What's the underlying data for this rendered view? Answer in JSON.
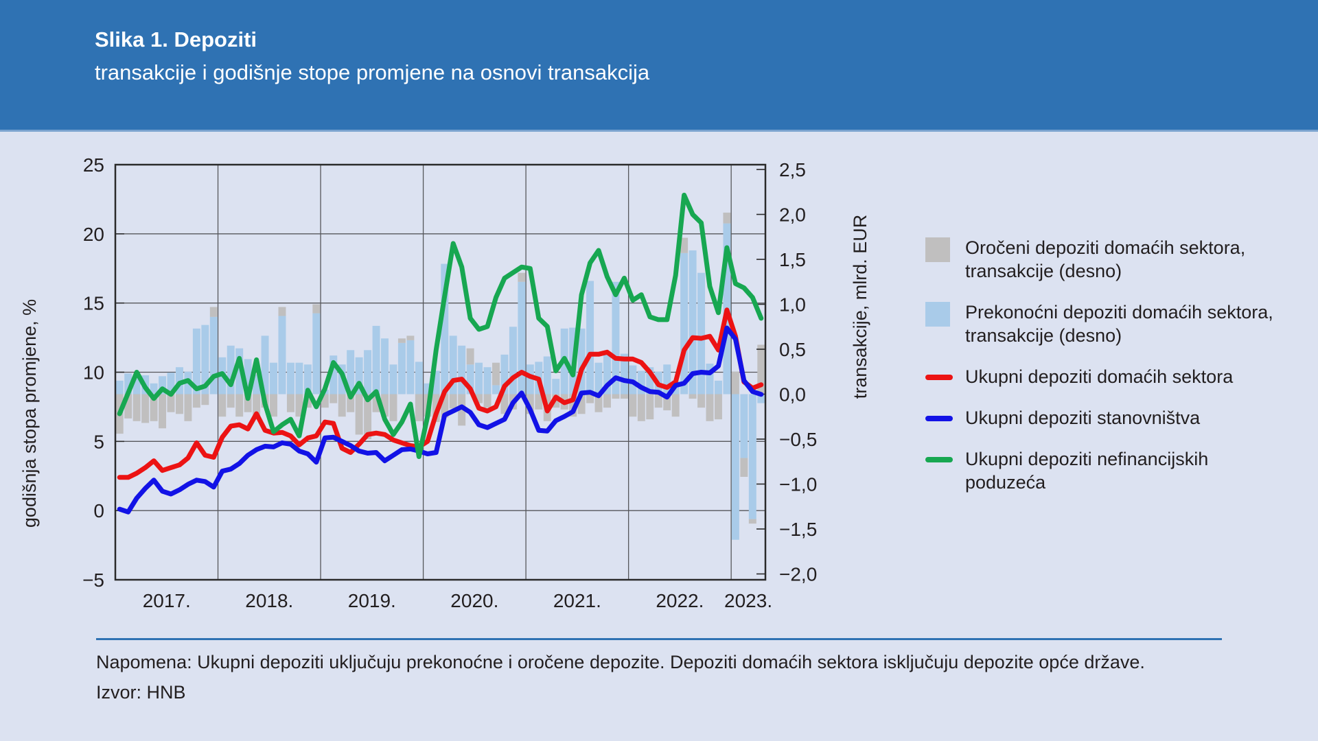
{
  "header": {
    "title": "Slika 1. Depoziti",
    "subtitle": "transakcije i godišnje stope promjene na osnovi transakcija"
  },
  "chart_data": {
    "type": "bar",
    "subtype": "combo-stacked-bars-with-lines",
    "x_monthly_start": "2017-01",
    "x_monthly_end": "2023-04",
    "n_months": 76,
    "x_tick_labels": [
      "2017.",
      "2018.",
      "2019.",
      "2020.",
      "2021.",
      "2022.",
      "2023."
    ],
    "left_axis": {
      "label": "godišnja stopa promjene, %",
      "min": -5,
      "max": 25,
      "tick_values": [
        25,
        20,
        15,
        10,
        5,
        0,
        -5
      ],
      "tick_labels": [
        "25",
        "20",
        "15",
        "10",
        "5",
        "0",
        "−5"
      ]
    },
    "right_axis": {
      "label": "transakcije, mlrd. EUR",
      "min": -2.0,
      "max": 2.5,
      "tick_values": [
        2.5,
        2.0,
        1.5,
        1.0,
        0.5,
        0.0,
        -0.5,
        -1.0,
        -1.5,
        -2.0
      ],
      "tick_labels": [
        "2,5",
        "2,0",
        "1,5",
        "1,0",
        "0,5",
        "0,0",
        "−0,5",
        "−1,0",
        "−1,5",
        "−2,0"
      ]
    },
    "grid": true,
    "legend_position": "right",
    "series": [
      {
        "name": "Prekonoćni depoziti domaćih sektora, transakcije (desno)",
        "type": "bar",
        "axis": "right",
        "color": "#a9cbe9",
        "values": [
          0.15,
          0.23,
          0.2,
          0.21,
          0.12,
          0.2,
          0.24,
          0.3,
          0.25,
          0.73,
          0.77,
          0.86,
          0.41,
          0.54,
          0.51,
          0.39,
          0.22,
          0.65,
          0.35,
          0.87,
          0.35,
          0.35,
          0.33,
          0.9,
          0.05,
          0.43,
          0.33,
          0.49,
          0.41,
          0.49,
          0.76,
          0.62,
          0.33,
          0.57,
          0.6,
          0.36,
          0.12,
          0.26,
          1.45,
          0.65,
          0.54,
          0.33,
          0.35,
          0.3,
          0.1,
          0.44,
          0.75,
          1.25,
          0.33,
          0.36,
          0.42,
          0.17,
          0.73,
          0.74,
          0.73,
          1.26,
          0.35,
          0.45,
          1.25,
          0.45,
          0.32,
          0.26,
          0.3,
          0.25,
          0.33,
          0.15,
          1.57,
          1.6,
          1.35,
          0.34,
          0.15,
          1.9,
          -1.62,
          -0.71,
          -1.39,
          -0.1
        ]
      },
      {
        "name": "Oročeni depoziti domaćih sektora, transakcije (desno)",
        "type": "bar",
        "axis": "right",
        "color": "#c0bfbf",
        "values": [
          -0.44,
          -0.27,
          -0.3,
          -0.32,
          -0.3,
          -0.38,
          -0.2,
          -0.22,
          -0.3,
          -0.15,
          -0.12,
          0.11,
          -0.25,
          -0.15,
          -0.25,
          -0.2,
          -0.28,
          -0.15,
          -0.25,
          0.1,
          -0.2,
          -0.25,
          -0.15,
          0.1,
          -0.15,
          -0.1,
          -0.25,
          -0.2,
          -0.45,
          -0.5,
          -0.2,
          -0.25,
          -0.3,
          0.05,
          0.05,
          -0.3,
          -0.25,
          -0.31,
          -0.26,
          -0.16,
          -0.35,
          0.18,
          -0.1,
          -0.15,
          0.25,
          -0.22,
          -0.17,
          0.1,
          -0.22,
          -0.17,
          -0.3,
          -0.15,
          -0.17,
          -0.25,
          -0.22,
          -0.1,
          -0.2,
          -0.15,
          -0.05,
          -0.05,
          -0.25,
          -0.3,
          -0.28,
          -0.15,
          -0.18,
          -0.25,
          0.17,
          -0.05,
          -0.15,
          -0.3,
          -0.28,
          0.12,
          0.25,
          -0.21,
          -0.05,
          0.55
        ]
      },
      {
        "name": "Ukupni depoziti domaćih sektora",
        "type": "line",
        "axis": "left",
        "color": "#ec1313",
        "values": [
          2.4,
          2.4,
          2.7,
          3.1,
          3.6,
          2.9,
          3.1,
          3.3,
          3.8,
          4.9,
          4.0,
          3.85,
          5.3,
          6.1,
          6.2,
          5.9,
          7.0,
          5.8,
          5.6,
          5.65,
          5.4,
          4.75,
          5.25,
          5.4,
          6.4,
          6.3,
          4.5,
          4.2,
          4.8,
          5.5,
          5.6,
          5.5,
          5.1,
          4.9,
          4.7,
          4.6,
          5.0,
          7.0,
          8.6,
          9.4,
          9.5,
          8.8,
          7.4,
          7.2,
          7.5,
          9.0,
          9.6,
          10.0,
          9.7,
          9.5,
          7.2,
          8.2,
          7.8,
          8.0,
          10.2,
          11.3,
          11.3,
          11.45,
          11.0,
          10.95,
          10.95,
          10.7,
          10.0,
          9.1,
          8.9,
          9.3,
          11.6,
          12.5,
          12.45,
          12.6,
          11.6,
          14.5,
          12.6,
          9.3,
          8.85,
          9.1
        ]
      },
      {
        "name": "Ukupni depoziti stanovništva",
        "type": "line",
        "axis": "left",
        "color": "#1212e6",
        "values": [
          0.1,
          -0.1,
          0.9,
          1.6,
          2.2,
          1.4,
          1.2,
          1.5,
          1.9,
          2.2,
          2.1,
          1.7,
          2.85,
          3.0,
          3.4,
          4.0,
          4.4,
          4.65,
          4.6,
          4.9,
          4.8,
          4.3,
          4.1,
          3.5,
          5.25,
          5.3,
          5.0,
          4.7,
          4.3,
          4.15,
          4.2,
          3.6,
          4.0,
          4.4,
          4.45,
          4.3,
          4.1,
          4.2,
          6.9,
          7.2,
          7.5,
          7.1,
          6.2,
          6.0,
          6.3,
          6.6,
          7.8,
          8.5,
          7.3,
          5.8,
          5.75,
          6.5,
          6.8,
          7.15,
          8.5,
          8.55,
          8.3,
          9.05,
          9.6,
          9.4,
          9.3,
          8.9,
          8.6,
          8.55,
          8.2,
          9.05,
          9.2,
          9.9,
          10.0,
          9.95,
          10.45,
          13.2,
          12.4,
          9.4,
          8.6,
          8.4
        ]
      },
      {
        "name": "Ukupni depoziti nefinancijskih poduzeća",
        "type": "line",
        "axis": "left",
        "color": "#17a751",
        "values": [
          7.0,
          8.5,
          10.0,
          8.9,
          8.1,
          8.8,
          8.4,
          9.2,
          9.4,
          8.8,
          9.0,
          9.7,
          9.9,
          9.1,
          11.0,
          8.1,
          10.9,
          7.7,
          5.7,
          6.2,
          6.6,
          5.4,
          8.7,
          7.5,
          8.8,
          10.7,
          9.9,
          8.2,
          9.2,
          8.0,
          8.6,
          6.6,
          5.5,
          6.4,
          7.7,
          3.9,
          6.8,
          11.6,
          15.5,
          19.3,
          17.6,
          13.9,
          13.1,
          13.3,
          15.4,
          16.8,
          17.2,
          17.6,
          17.5,
          13.9,
          13.3,
          10.1,
          11.0,
          9.8,
          15.6,
          17.9,
          18.8,
          16.9,
          15.6,
          16.8,
          15.2,
          15.6,
          14.0,
          13.8,
          13.8,
          17.0,
          22.8,
          21.4,
          20.8,
          16.2,
          14.3,
          19.0,
          16.4,
          16.1,
          15.4,
          13.9
        ]
      }
    ]
  },
  "legend": {
    "items": [
      {
        "swatch": "square",
        "color": "#c0bfbf",
        "label": "Oročeni depoziti domaćih sektora, transakcije (desno)"
      },
      {
        "swatch": "square",
        "color": "#a9cbe9",
        "label": "Prekonoćni depoziti domaćih sektora, transakcije (desno)"
      },
      {
        "swatch": "line",
        "color": "#ec1313",
        "label": "Ukupni depoziti domaćih sektora"
      },
      {
        "swatch": "line",
        "color": "#1212e6",
        "label": "Ukupni depoziti stanovništva"
      },
      {
        "swatch": "line",
        "color": "#17a751",
        "label": "Ukupni depoziti nefinancijskih poduzeća"
      }
    ]
  },
  "footer": {
    "note": "Napomena: Ukupni depoziti uključuju prekonoćne i oročene depozite. Depoziti domaćih sektora isključuju depozite opće države.",
    "source": "Izvor: HNB"
  },
  "colors": {
    "header_bg": "#2f72b3",
    "page_bg": "#dce2f1",
    "grid": "#56575b",
    "plot_border": "#2a2a2a",
    "text": "#221e1f",
    "separator": "#2f72b3"
  }
}
